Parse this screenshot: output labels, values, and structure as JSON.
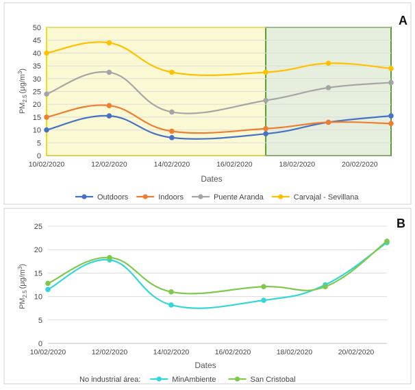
{
  "chart_data": [
    {
      "type": "line",
      "panel_letter": "A",
      "xlabel": "Dates",
      "ylabel": "PM",
      "ylabel_sub": "2.5",
      "ylabel_unit": "(μg/m",
      "ylabel_sup": "3",
      "ylabel_close": ")",
      "ylim": [
        0,
        50
      ],
      "y_ticks": [
        0,
        5,
        10,
        15,
        20,
        25,
        30,
        35,
        40,
        45,
        50
      ],
      "x_ticks": [
        "10/02/2020",
        "12/02/2020",
        "14/02/2020",
        "16/02/2020",
        "18/02/2020",
        "20/02/2020"
      ],
      "x": [
        "10/02/2020",
        "12/02/2020",
        "14/02/2020",
        "17/02/2020",
        "19/02/2020",
        "21/02/2020"
      ],
      "legend_position": "bottom",
      "grid": true,
      "shaded_regions": [
        {
          "from": "10/02/2020",
          "to": "17/02/2020",
          "fill": "#fbf8d4",
          "border": "#f2e000"
        },
        {
          "from": "17/02/2020",
          "to": "21/02/2020",
          "fill": "#e6efdd",
          "border": "#5a9a3a"
        }
      ],
      "series": [
        {
          "name": "Outdoors",
          "color": "#4472c4",
          "values": [
            10,
            15.5,
            7,
            8.5,
            13,
            15.5
          ]
        },
        {
          "name": "Indoors",
          "color": "#ed7d31",
          "values": [
            15,
            19.5,
            9.5,
            10.5,
            13,
            12.5
          ]
        },
        {
          "name": "Puente Aranda",
          "color": "#a5a5a5",
          "values": [
            24,
            32.5,
            17,
            21.5,
            26.5,
            28.5
          ]
        },
        {
          "name": "Carvajal - Sevillana",
          "color": "#ffc000",
          "values": [
            40,
            44,
            32.5,
            32.5,
            36,
            34
          ]
        }
      ]
    },
    {
      "type": "line",
      "panel_letter": "B",
      "xlabel": "Dates",
      "ylabel": "PM",
      "ylabel_sub": "2.5",
      "ylabel_unit": "(μg/m",
      "ylabel_sup": "3",
      "ylabel_close": ")",
      "ylim": [
        0,
        25
      ],
      "y_ticks": [
        0,
        5,
        10,
        15,
        20,
        25
      ],
      "x_ticks": [
        "10/02/2020",
        "12/02/2020",
        "14/02/2020",
        "16/02/2020",
        "18/02/2020",
        "20/02/2020"
      ],
      "x": [
        "10/02/2020",
        "12/02/2020",
        "14/02/2020",
        "17/02/2020",
        "19/02/2020",
        "21/02/2020"
      ],
      "legend_position": "bottom",
      "legend_prefix": "No industrial área:",
      "grid": true,
      "series": [
        {
          "name": "MinAmbiente",
          "color": "#33d6d6",
          "values": [
            11.5,
            17.8,
            8.2,
            9.2,
            12.5,
            21.5
          ]
        },
        {
          "name": "San Cristobal",
          "color": "#7ec84a",
          "values": [
            12.8,
            18.3,
            11,
            12.1,
            12.1,
            21.8
          ]
        }
      ]
    }
  ]
}
